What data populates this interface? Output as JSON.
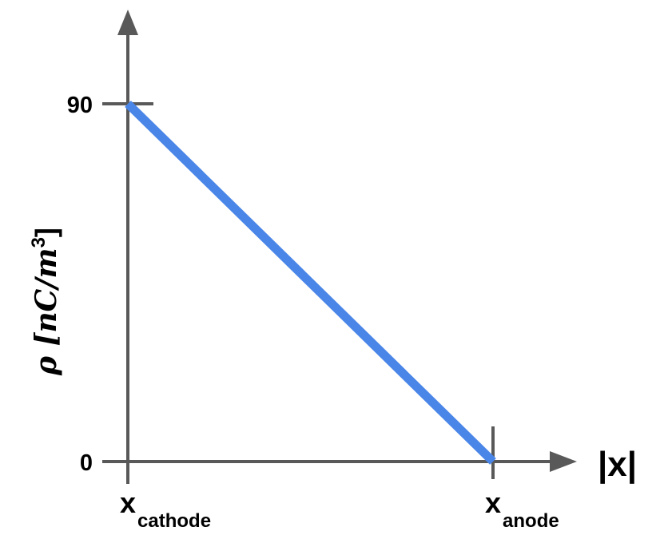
{
  "chart_data": {
    "type": "line",
    "xlabel": "|x|",
    "ylabel": "ρ [nC/m",
    "ylabel_superscript": "3",
    "ylabel_suffix": "]",
    "y_ticks": [
      {
        "label": "0",
        "value": 0
      },
      {
        "label": "90",
        "value": 90
      }
    ],
    "x_ticks": [
      {
        "main": "x",
        "sub": "cathode",
        "value": 0
      },
      {
        "main": "x",
        "sub": "anode",
        "value": 1
      }
    ],
    "ylim": [
      0,
      110
    ],
    "xlim": [
      0,
      1.25
    ],
    "series": [
      {
        "x": [
          0,
          1
        ],
        "y": [
          90,
          0
        ]
      }
    ],
    "colors": {
      "line": "#4a86e8",
      "axis": "#595959",
      "text": "#000000"
    },
    "grid": false,
    "legend": "none"
  }
}
